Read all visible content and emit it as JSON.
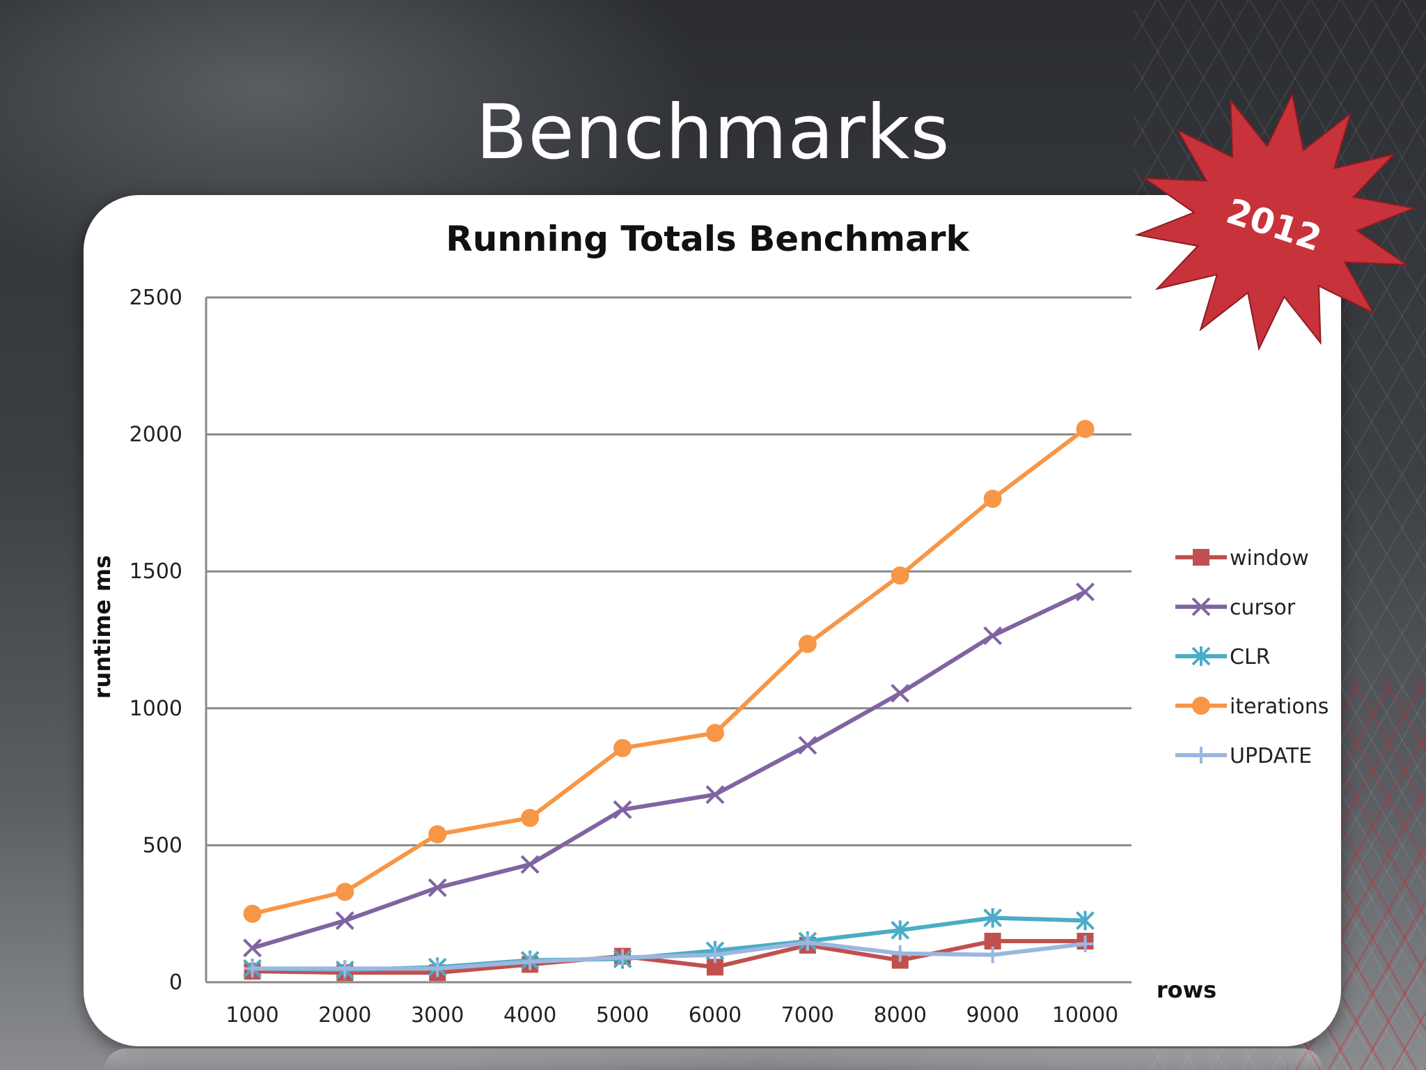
{
  "slide": {
    "title": "Benchmarks"
  },
  "badge": {
    "text": "2012",
    "color": "#c8323a"
  },
  "chart_data": {
    "type": "line",
    "title": "Running Totals Benchmark",
    "xlabel": "rows",
    "ylabel": "runtime ms",
    "categories": [
      "1000",
      "2000",
      "3000",
      "4000",
      "5000",
      "6000",
      "7000",
      "8000",
      "9000",
      "10000"
    ],
    "ylim": [
      0,
      2500
    ],
    "yticks": [
      "0",
      "500",
      "1000",
      "1500",
      "2000",
      "2500"
    ],
    "grid": true,
    "legend_position": "right",
    "series": [
      {
        "name": "window",
        "color": "#c0504d",
        "marker": "square",
        "values": [
          40,
          35,
          35,
          65,
          95,
          55,
          135,
          80,
          150,
          150
        ]
      },
      {
        "name": "cursor",
        "color": "#8064a2",
        "marker": "x",
        "values": [
          125,
          225,
          345,
          430,
          630,
          685,
          865,
          1055,
          1265,
          1425
        ]
      },
      {
        "name": "CLR",
        "color": "#4bacc6",
        "marker": "asterisk",
        "values": [
          50,
          45,
          55,
          80,
          85,
          115,
          150,
          190,
          235,
          225
        ]
      },
      {
        "name": "iterations",
        "color": "#f79646",
        "marker": "circle",
        "values": [
          250,
          330,
          540,
          600,
          855,
          910,
          1235,
          1485,
          1765,
          2020
        ]
      },
      {
        "name": "UPDATE",
        "color": "#9bb7e0",
        "marker": "plus",
        "values": [
          50,
          50,
          50,
          75,
          90,
          100,
          145,
          105,
          100,
          140
        ]
      }
    ]
  }
}
